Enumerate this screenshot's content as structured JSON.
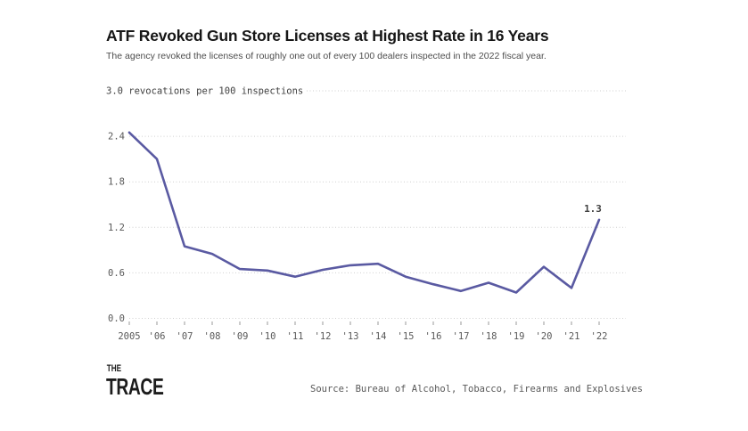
{
  "header": {
    "title": "ATF Revoked Gun Store Licenses at Highest Rate in 16 Years",
    "subtitle": "The agency revoked the licenses of roughly one out of every 100 dealers inspected in the 2022 fiscal year."
  },
  "chart_data": {
    "type": "line",
    "title": "ATF Revoked Gun Store Licenses at Highest Rate in 16 Years",
    "unit_label": "3.0 revocations per 100 inspections",
    "categories": [
      "2005",
      "'06",
      "'07",
      "'08",
      "'09",
      "'10",
      "'11",
      "'12",
      "'13",
      "'14",
      "'15",
      "'16",
      "'17",
      "'18",
      "'19",
      "'20",
      "'21",
      "'22"
    ],
    "values": [
      2.45,
      2.1,
      0.95,
      0.85,
      0.65,
      0.63,
      0.55,
      0.64,
      0.7,
      0.72,
      0.55,
      0.45,
      0.36,
      0.47,
      0.34,
      0.68,
      0.4,
      1.3
    ],
    "y_ticks": [
      0.0,
      0.6,
      1.2,
      1.8,
      2.4
    ],
    "y_tick_labels": [
      "0.0",
      "0.6",
      "1.2",
      "1.8",
      "2.4"
    ],
    "y_top_tick": 3.0,
    "ylim": [
      0,
      3.0
    ],
    "end_label": "1.3",
    "grid": true,
    "legend": false,
    "colors": {
      "line": "#5a5aa2",
      "grid": "#cfcfcf",
      "axis_text": "#585858",
      "tick_mark": "#9a9a9a",
      "annotation": "#3f3f3f",
      "unit_label": "#3f3f3f"
    }
  },
  "footer": {
    "logo_top": "THE",
    "logo_bottom": "TRACE",
    "source": "Source: Bureau of Alcohol, Tobacco, Firearms and Explosives"
  }
}
